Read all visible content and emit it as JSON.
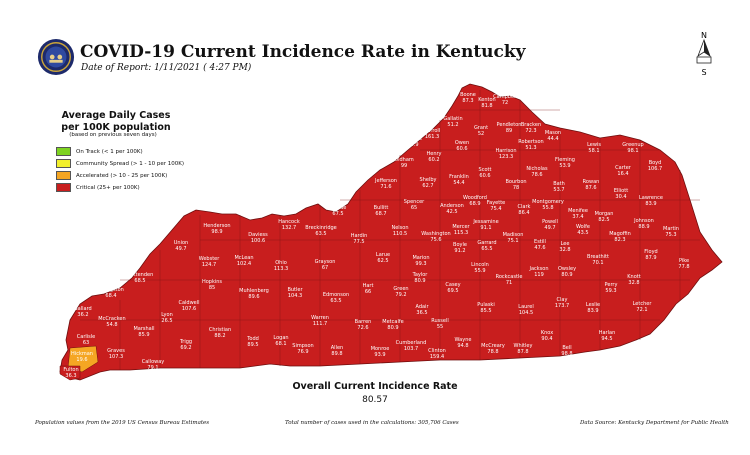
{
  "header": {
    "title": "COVID-19 Current Incidence Rate in Kentucky",
    "date": "Date of Report: 1/11/2021 ( 4:27 PM)"
  },
  "legend": {
    "title_line1": "Average Daily Cases",
    "title_line2": "per 100K population",
    "note": "(based on previous seven days)",
    "items": [
      {
        "label": "On Track (< 1 per 100K)",
        "color": "#7ed321"
      },
      {
        "label": "Community Spread (> 1 - 10 per 100K)",
        "color": "#f2ef2c"
      },
      {
        "label": "Accelerated (> 10 - 25 per 100K)",
        "color": "#f5a623"
      },
      {
        "label": "Critical (25+ per 100K)",
        "color": "#c81e1e"
      }
    ]
  },
  "compass_letters": {
    "n": "N",
    "s": "S"
  },
  "overall": {
    "label": "Overall Current Incidence Rate",
    "value": "80.57"
  },
  "footer": {
    "left": "Population values from the 2019 US Census Bureau Estimates",
    "center": "Total number of cases used in the calculations: 305,706 Cases",
    "right": "Data Source: Kentucky Department for Public Health"
  },
  "counties": [
    {
      "name": "Boone",
      "value": "87.3"
    },
    {
      "name": "Kenton",
      "value": "81.8"
    },
    {
      "name": "Campbell",
      "value": "72"
    },
    {
      "name": "Gallatin",
      "value": "51.2"
    },
    {
      "name": "Grant",
      "value": "52"
    },
    {
      "name": "Pendleton",
      "value": "89"
    },
    {
      "name": "Bracken",
      "value": "72.3"
    },
    {
      "name": "Trimble",
      "value": "75.9"
    },
    {
      "name": "Carroll",
      "value": "161.3"
    },
    {
      "name": "Owen",
      "value": "60.6"
    },
    {
      "name": "Harrison",
      "value": "123.3"
    },
    {
      "name": "Robertson",
      "value": "51.3"
    },
    {
      "name": "Mason",
      "value": "44.4"
    },
    {
      "name": "Lewis",
      "value": "58.1"
    },
    {
      "name": "Greenup",
      "value": "98.1"
    },
    {
      "name": "Boyd",
      "value": "106.7"
    },
    {
      "name": "Henry",
      "value": "60.2"
    },
    {
      "name": "Oldham",
      "value": "99"
    },
    {
      "name": "Scott",
      "value": "60.6"
    },
    {
      "name": "Nicholas",
      "value": "78.6"
    },
    {
      "name": "Fleming",
      "value": "53.9"
    },
    {
      "name": "Carter",
      "value": "16.4"
    },
    {
      "name": "Rowan",
      "value": "87.6"
    },
    {
      "name": "Jefferson",
      "value": "71.6"
    },
    {
      "name": "Shelby",
      "value": "62.7"
    },
    {
      "name": "Franklin",
      "value": "54.4"
    },
    {
      "name": "Bourbon",
      "value": "78"
    },
    {
      "name": "Bath",
      "value": "53.7"
    },
    {
      "name": "Elliott",
      "value": "30.4"
    },
    {
      "name": "Lawrence",
      "value": "83.9"
    },
    {
      "name": "Bullitt",
      "value": "68.7"
    },
    {
      "name": "Spencer",
      "value": "65"
    },
    {
      "name": "Anderson",
      "value": "42.5"
    },
    {
      "name": "Woodford",
      "value": "68.9"
    },
    {
      "name": "Fayette",
      "value": "75.4"
    },
    {
      "name": "Clark",
      "value": "86.4"
    },
    {
      "name": "Montgomery",
      "value": "55.8"
    },
    {
      "name": "Menifee",
      "value": "37.4"
    },
    {
      "name": "Morgan",
      "value": "82.5"
    },
    {
      "name": "Johnson",
      "value": "88.9"
    },
    {
      "name": "Martin",
      "value": "75.3"
    },
    {
      "name": "Meade",
      "value": "67.5"
    },
    {
      "name": "Hancock",
      "value": "132.7"
    },
    {
      "name": "Breckinridge",
      "value": "63.5"
    },
    {
      "name": "Hardin",
      "value": "77.5"
    },
    {
      "name": "Nelson",
      "value": "110.5"
    },
    {
      "name": "Washington",
      "value": "75.6"
    },
    {
      "name": "Mercer",
      "value": "115.3"
    },
    {
      "name": "Jessamine",
      "value": "91.1"
    },
    {
      "name": "Madison",
      "value": "75.1"
    },
    {
      "name": "Estill",
      "value": "47.6"
    },
    {
      "name": "Powell",
      "value": "49.7"
    },
    {
      "name": "Wolfe",
      "value": "43.5"
    },
    {
      "name": "Magoffin",
      "value": "82.3"
    },
    {
      "name": "Floyd",
      "value": "87.9"
    },
    {
      "name": "Pike",
      "value": "77.8"
    },
    {
      "name": "Henderson",
      "value": "98.9"
    },
    {
      "name": "Daviess",
      "value": "100.6"
    },
    {
      "name": "Union",
      "value": "49.7"
    },
    {
      "name": "Webster",
      "value": "124.7"
    },
    {
      "name": "McLean",
      "value": "102.4"
    },
    {
      "name": "Ohio",
      "value": "113.3"
    },
    {
      "name": "Grayson",
      "value": "67"
    },
    {
      "name": "Larue",
      "value": "62.5"
    },
    {
      "name": "Marion",
      "value": "99.3"
    },
    {
      "name": "Boyle",
      "value": "91.2"
    },
    {
      "name": "Garrard",
      "value": "65.5"
    },
    {
      "name": "Lee",
      "value": "32.8"
    },
    {
      "name": "Breathitt",
      "value": "70.1"
    },
    {
      "name": "Knott",
      "value": "32.8"
    },
    {
      "name": "Crittenden",
      "value": "68.5"
    },
    {
      "name": "Hopkins",
      "value": "85"
    },
    {
      "name": "Muhlenberg",
      "value": "89.6"
    },
    {
      "name": "Butler",
      "value": "104.3"
    },
    {
      "name": "Edmonson",
      "value": "63.5"
    },
    {
      "name": "Hart",
      "value": "66"
    },
    {
      "name": "Green",
      "value": "79.2"
    },
    {
      "name": "Taylor",
      "value": "80.9"
    },
    {
      "name": "Casey",
      "value": "69.5"
    },
    {
      "name": "Lincoln",
      "value": "55.9"
    },
    {
      "name": "Rockcastle",
      "value": "71"
    },
    {
      "name": "Jackson",
      "value": "119"
    },
    {
      "name": "Owsley",
      "value": "80.9"
    },
    {
      "name": "Perry",
      "value": "59.3"
    },
    {
      "name": "Letcher",
      "value": "72.1"
    },
    {
      "name": "Livingston",
      "value": "68.4"
    },
    {
      "name": "Caldwell",
      "value": "107.6"
    },
    {
      "name": "Lyon",
      "value": "26.5"
    },
    {
      "name": "Christian",
      "value": "88.2"
    },
    {
      "name": "Todd",
      "value": "89.5"
    },
    {
      "name": "Logan",
      "value": "68.1"
    },
    {
      "name": "Warren",
      "value": "111.7"
    },
    {
      "name": "Barren",
      "value": "72.6"
    },
    {
      "name": "Metcalfe",
      "value": "80.9"
    },
    {
      "name": "Adair",
      "value": "36.5"
    },
    {
      "name": "Russell",
      "value": "55"
    },
    {
      "name": "Pulaski",
      "value": "85.5"
    },
    {
      "name": "Laurel",
      "value": "104.5"
    },
    {
      "name": "Clay",
      "value": "173.7"
    },
    {
      "name": "Leslie",
      "value": "83.9"
    },
    {
      "name": "Harlan",
      "value": "94.5"
    },
    {
      "name": "Ballard",
      "value": "36.2"
    },
    {
      "name": "McCracken",
      "value": "54.8"
    },
    {
      "name": "Marshall",
      "value": "85.9"
    },
    {
      "name": "Trigg",
      "value": "69.2"
    },
    {
      "name": "Carlisle",
      "value": "63"
    },
    {
      "name": "Graves",
      "value": "107.3"
    },
    {
      "name": "Calloway",
      "value": "79.1"
    },
    {
      "name": "Hickman",
      "value": "19.6"
    },
    {
      "name": "Fulton",
      "value": "36.3"
    },
    {
      "name": "Simpson",
      "value": "76.9"
    },
    {
      "name": "Allen",
      "value": "89.8"
    },
    {
      "name": "Monroe",
      "value": "93.9"
    },
    {
      "name": "Cumberland",
      "value": "103.7"
    },
    {
      "name": "Clinton",
      "value": "159.4"
    },
    {
      "name": "Wayne",
      "value": "94.8"
    },
    {
      "name": "McCreary",
      "value": "78.8"
    },
    {
      "name": "Whitley",
      "value": "87.8"
    },
    {
      "name": "Knox",
      "value": "90.4"
    },
    {
      "name": "Bell",
      "value": "98.8"
    }
  ]
}
